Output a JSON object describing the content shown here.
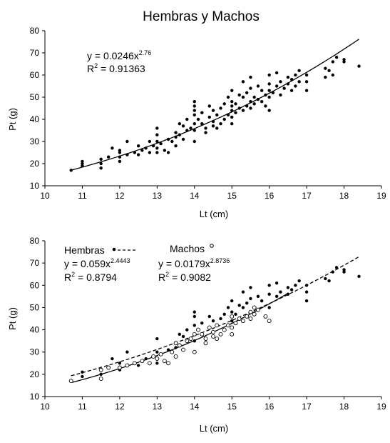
{
  "chart_data": [
    {
      "type": "scatter",
      "title": "Hembras y Machos",
      "xlabel": "Lt (cm)",
      "ylabel": "Pt (g)",
      "xlim": [
        10,
        19
      ],
      "ylim": [
        10,
        80
      ],
      "xticks": [
        "10",
        "11",
        "12",
        "13",
        "14",
        "15",
        "16",
        "17",
        "18",
        "19"
      ],
      "yticks": [
        "10",
        "20",
        "30",
        "40",
        "50",
        "60",
        "70",
        "80"
      ],
      "grid": false,
      "annotation": {
        "equation_prefix": "y = 0.0246x",
        "exponent": "2.76",
        "r2_prefix": "R",
        "r2_sup": "2",
        "r2_value": " = 0.91363"
      },
      "fit": {
        "a": 0.0246,
        "b": 2.76,
        "x_range": [
          10.7,
          18.4
        ],
        "style": "solid"
      },
      "series": [
        {
          "marker": "filled-circle",
          "points": [
            [
              10.7,
              17
            ],
            [
              11,
              19
            ],
            [
              11,
              20
            ],
            [
              11,
              21
            ],
            [
              11.5,
              18
            ],
            [
              11.5,
              20
            ],
            [
              11.5,
              22
            ],
            [
              11.7,
              23
            ],
            [
              11.8,
              27
            ],
            [
              12,
              21
            ],
            [
              12,
              23
            ],
            [
              12,
              25
            ],
            [
              12,
              26
            ],
            [
              12.2,
              24
            ],
            [
              12.2,
              30
            ],
            [
              12.4,
              25
            ],
            [
              12.5,
              24
            ],
            [
              12.5,
              28
            ],
            [
              12.6,
              26
            ],
            [
              12.7,
              27
            ],
            [
              12.8,
              25
            ],
            [
              12.8,
              30
            ],
            [
              12.9,
              28
            ],
            [
              13,
              25
            ],
            [
              13,
              27
            ],
            [
              13,
              30
            ],
            [
              13,
              33
            ],
            [
              13,
              36
            ],
            [
              13.1,
              29
            ],
            [
              13.2,
              26
            ],
            [
              13.3,
              25
            ],
            [
              13.3,
              31
            ],
            [
              13.4,
              30
            ],
            [
              13.5,
              28
            ],
            [
              13.5,
              32
            ],
            [
              13.5,
              34
            ],
            [
              13.6,
              33
            ],
            [
              13.6,
              38
            ],
            [
              13.7,
              31
            ],
            [
              13.7,
              37
            ],
            [
              13.8,
              35
            ],
            [
              13.8,
              40
            ],
            [
              13.9,
              36
            ],
            [
              14,
              30
            ],
            [
              14,
              35
            ],
            [
              14,
              38
            ],
            [
              14,
              42
            ],
            [
              14,
              44
            ],
            [
              14,
              46
            ],
            [
              14,
              48
            ],
            [
              14.1,
              40
            ],
            [
              14.2,
              38
            ],
            [
              14.2,
              43
            ],
            [
              14.3,
              34
            ],
            [
              14.3,
              36
            ],
            [
              14.4,
              41
            ],
            [
              14.4,
              46
            ],
            [
              14.5,
              37
            ],
            [
              14.5,
              39
            ],
            [
              14.5,
              44
            ],
            [
              14.6,
              36
            ],
            [
              14.6,
              42
            ],
            [
              14.7,
              38
            ],
            [
              14.7,
              45
            ],
            [
              14.8,
              40
            ],
            [
              14.8,
              47
            ],
            [
              14.9,
              42
            ],
            [
              14.9,
              50
            ],
            [
              15,
              38
            ],
            [
              15,
              41
            ],
            [
              15,
              44
            ],
            [
              15,
              46
            ],
            [
              15,
              48
            ],
            [
              15,
              53
            ],
            [
              15.1,
              43
            ],
            [
              15.1,
              47
            ],
            [
              15.2,
              45
            ],
            [
              15.2,
              51
            ],
            [
              15.3,
              44
            ],
            [
              15.3,
              50
            ],
            [
              15.3,
              57
            ],
            [
              15.4,
              46
            ],
            [
              15.4,
              52
            ],
            [
              15.5,
              45
            ],
            [
              15.5,
              48
            ],
            [
              15.5,
              54
            ],
            [
              15.5,
              59
            ],
            [
              15.6,
              47
            ],
            [
              15.6,
              50
            ],
            [
              15.7,
              49
            ],
            [
              15.7,
              55
            ],
            [
              15.8,
              48
            ],
            [
              15.8,
              53
            ],
            [
              15.9,
              46
            ],
            [
              15.9,
              51
            ],
            [
              16,
              44
            ],
            [
              16,
              50
            ],
            [
              16,
              53
            ],
            [
              16,
              56
            ],
            [
              16,
              60
            ],
            [
              16.1,
              52
            ],
            [
              16.2,
              55
            ],
            [
              16.2,
              61
            ],
            [
              16.3,
              51
            ],
            [
              16.3,
              57
            ],
            [
              16.4,
              54
            ],
            [
              16.5,
              56
            ],
            [
              16.5,
              59
            ],
            [
              16.6,
              53
            ],
            [
              16.6,
              58
            ],
            [
              16.7,
              55
            ],
            [
              16.7,
              60
            ],
            [
              16.8,
              57
            ],
            [
              16.8,
              62
            ],
            [
              17,
              53
            ],
            [
              17,
              57
            ],
            [
              17,
              60
            ],
            [
              17.5,
              59
            ],
            [
              17.5,
              63
            ],
            [
              17.6,
              62
            ],
            [
              17.7,
              60
            ],
            [
              17.7,
              66
            ],
            [
              17.8,
              68
            ],
            [
              18,
              66
            ],
            [
              18,
              67
            ],
            [
              18.4,
              64
            ]
          ]
        }
      ]
    },
    {
      "type": "scatter",
      "xlabel": "Lt (cm)",
      "ylabel": "Pt (g)",
      "xlim": [
        10,
        19
      ],
      "ylim": [
        10,
        80
      ],
      "xticks": [
        "10",
        "11",
        "12",
        "13",
        "14",
        "15",
        "16",
        "17",
        "18",
        "19"
      ],
      "yticks": [
        "10",
        "20",
        "30",
        "40",
        "50",
        "60",
        "70",
        "80"
      ],
      "grid": false,
      "legend": [
        {
          "name": "Hembras",
          "equation_prefix": "y = 0.059x",
          "exponent": "2.4443",
          "r2_prefix": "R",
          "r2_sup": "2",
          "r2_value": " = 0.8794"
        },
        {
          "name": "Machos",
          "equation_prefix": "y = 0.0179x",
          "exponent": "2.8736",
          "r2_prefix": "R",
          "r2_sup": "2",
          "r2_value": " = 0.9082"
        }
      ],
      "fits": [
        {
          "series": "Hembras",
          "a": 0.059,
          "b": 2.4443,
          "x_range": [
            10.7,
            18.4
          ],
          "style": "dashed"
        },
        {
          "series": "Machos",
          "a": 0.0179,
          "b": 2.8736,
          "x_range": [
            10.7,
            16.5
          ],
          "style": "solid"
        }
      ],
      "series": [
        {
          "name": "Hembras",
          "marker": "filled-circle",
          "points": [
            [
              11,
              19
            ],
            [
              11,
              21
            ],
            [
              11.5,
              20
            ],
            [
              11.8,
              27
            ],
            [
              12,
              22
            ],
            [
              12,
              25
            ],
            [
              12.2,
              30
            ],
            [
              12.5,
              24
            ],
            [
              12.7,
              27
            ],
            [
              13,
              25
            ],
            [
              13,
              30
            ],
            [
              13,
              36
            ],
            [
              13.3,
              31
            ],
            [
              13.5,
              32
            ],
            [
              13.6,
              38
            ],
            [
              13.7,
              37
            ],
            [
              13.8,
              40
            ],
            [
              14,
              35
            ],
            [
              14,
              42
            ],
            [
              14,
              46
            ],
            [
              14,
              48
            ],
            [
              14.2,
              43
            ],
            [
              14.4,
              46
            ],
            [
              14.5,
              44
            ],
            [
              14.7,
              45
            ],
            [
              14.8,
              47
            ],
            [
              14.9,
              50
            ],
            [
              15,
              44
            ],
            [
              15,
              48
            ],
            [
              15,
              53
            ],
            [
              15.1,
              47
            ],
            [
              15.2,
              51
            ],
            [
              15.3,
              50
            ],
            [
              15.3,
              57
            ],
            [
              15.4,
              52
            ],
            [
              15.5,
              54
            ],
            [
              15.5,
              59
            ],
            [
              15.7,
              55
            ],
            [
              15.8,
              53
            ],
            [
              16,
              50
            ],
            [
              16,
              56
            ],
            [
              16,
              60
            ],
            [
              16.2,
              55
            ],
            [
              16.2,
              61
            ],
            [
              16.3,
              57
            ],
            [
              16.5,
              56
            ],
            [
              16.5,
              59
            ],
            [
              16.6,
              58
            ],
            [
              16.7,
              60
            ],
            [
              16.8,
              62
            ],
            [
              17,
              53
            ],
            [
              17,
              57
            ],
            [
              17,
              60
            ],
            [
              17.5,
              63
            ],
            [
              17.6,
              62
            ],
            [
              17.7,
              66
            ],
            [
              17.8,
              68
            ],
            [
              18,
              66
            ],
            [
              18,
              67
            ],
            [
              18.4,
              64
            ]
          ]
        },
        {
          "name": "Machos",
          "marker": "open-circle",
          "points": [
            [
              10.7,
              17
            ],
            [
              11.5,
              18
            ],
            [
              11.5,
              22
            ],
            [
              11.7,
              23
            ],
            [
              12,
              23
            ],
            [
              12.2,
              24
            ],
            [
              12.4,
              25
            ],
            [
              12.6,
              26
            ],
            [
              12.8,
              25
            ],
            [
              12.9,
              28
            ],
            [
              13,
              27
            ],
            [
              13.1,
              29
            ],
            [
              13.2,
              26
            ],
            [
              13.3,
              25
            ],
            [
              13.4,
              30
            ],
            [
              13.5,
              28
            ],
            [
              13.5,
              34
            ],
            [
              13.6,
              33
            ],
            [
              13.7,
              31
            ],
            [
              13.8,
              35
            ],
            [
              13.9,
              36
            ],
            [
              14,
              30
            ],
            [
              14,
              38
            ],
            [
              14.1,
              40
            ],
            [
              14.2,
              38
            ],
            [
              14.3,
              34
            ],
            [
              14.3,
              36
            ],
            [
              14.4,
              41
            ],
            [
              14.5,
              37
            ],
            [
              14.5,
              39
            ],
            [
              14.6,
              36
            ],
            [
              14.6,
              42
            ],
            [
              14.7,
              38
            ],
            [
              14.8,
              40
            ],
            [
              14.9,
              42
            ],
            [
              15,
              38
            ],
            [
              15,
              41
            ],
            [
              15,
              46
            ],
            [
              15.1,
              43
            ],
            [
              15.2,
              45
            ],
            [
              15.3,
              44
            ],
            [
              15.4,
              46
            ],
            [
              15.5,
              45
            ],
            [
              15.5,
              48
            ],
            [
              15.6,
              47
            ],
            [
              15.6,
              50
            ],
            [
              15.7,
              49
            ],
            [
              15.9,
              46
            ],
            [
              16,
              44
            ]
          ]
        }
      ]
    }
  ]
}
